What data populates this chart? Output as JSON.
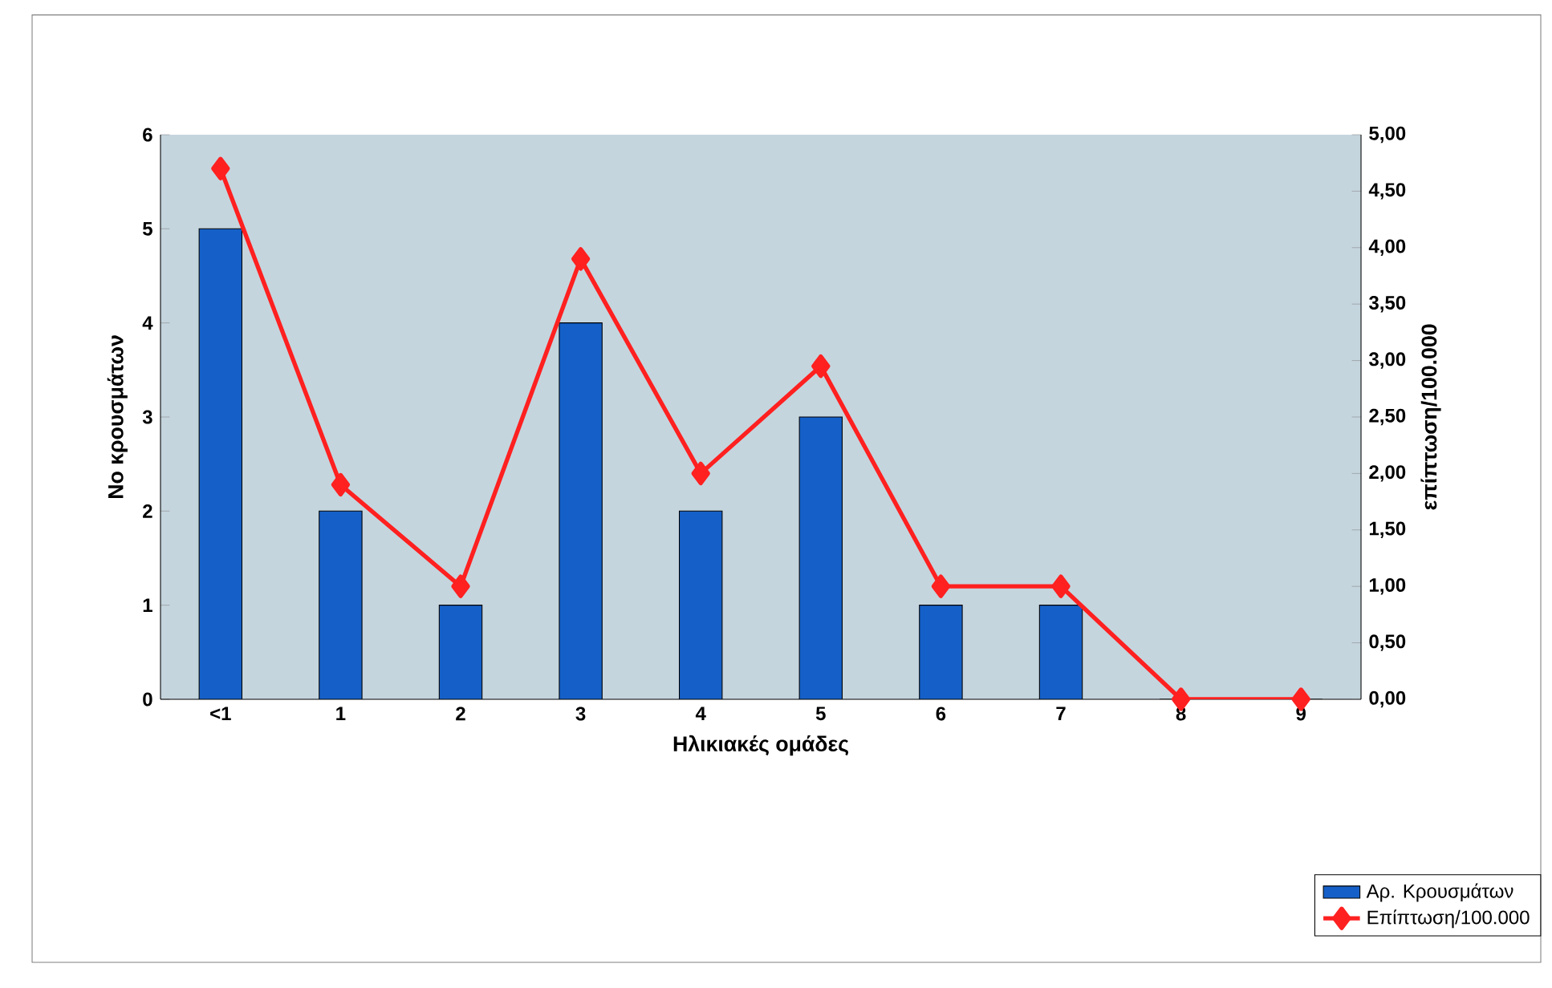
{
  "chart_data": {
    "type": "bar",
    "xlabel": "Ηλικιακές ομάδες",
    "ylabel": "No κρουσμάτων",
    "y2label": "επίπτωση/100.000",
    "categories": [
      "<1",
      "1",
      "2",
      "3",
      "4",
      "5",
      "6",
      "7",
      "8",
      "9"
    ],
    "series": [
      {
        "name": "Αρ. Κρουσμάτων",
        "color": "#1560c8",
        "values": [
          5,
          2,
          1,
          4,
          2,
          3,
          1,
          1,
          0,
          0
        ]
      },
      {
        "name": "Επίπτωση/100.000",
        "type": "line",
        "axis": "y2",
        "color": "#ff2020",
        "values": [
          4.7,
          1.9,
          1.0,
          3.9,
          2.0,
          2.95,
          1.0,
          1.0,
          0,
          0
        ]
      }
    ],
    "ylim": [
      0,
      6
    ],
    "yticks": [
      0,
      1,
      2,
      3,
      4,
      5,
      6
    ],
    "y2lim": [
      0,
      5
    ],
    "y2ticks": [
      {
        "value": 0,
        "label": "0,00"
      },
      {
        "value": 0.5,
        "label": "0,50"
      },
      {
        "value": 1,
        "label": "1,00"
      },
      {
        "value": 1.5,
        "label": "1,50"
      },
      {
        "value": 2,
        "label": "2,00"
      },
      {
        "value": 2.5,
        "label": "2,50"
      },
      {
        "value": 3,
        "label": "3,00"
      },
      {
        "value": 3.5,
        "label": "3,50"
      },
      {
        "value": 4,
        "label": "4,00"
      },
      {
        "value": 4.5,
        "label": "4,50"
      },
      {
        "value": 5,
        "label": "5,00"
      }
    ],
    "marker": "diamond",
    "legend": "bottom right"
  }
}
